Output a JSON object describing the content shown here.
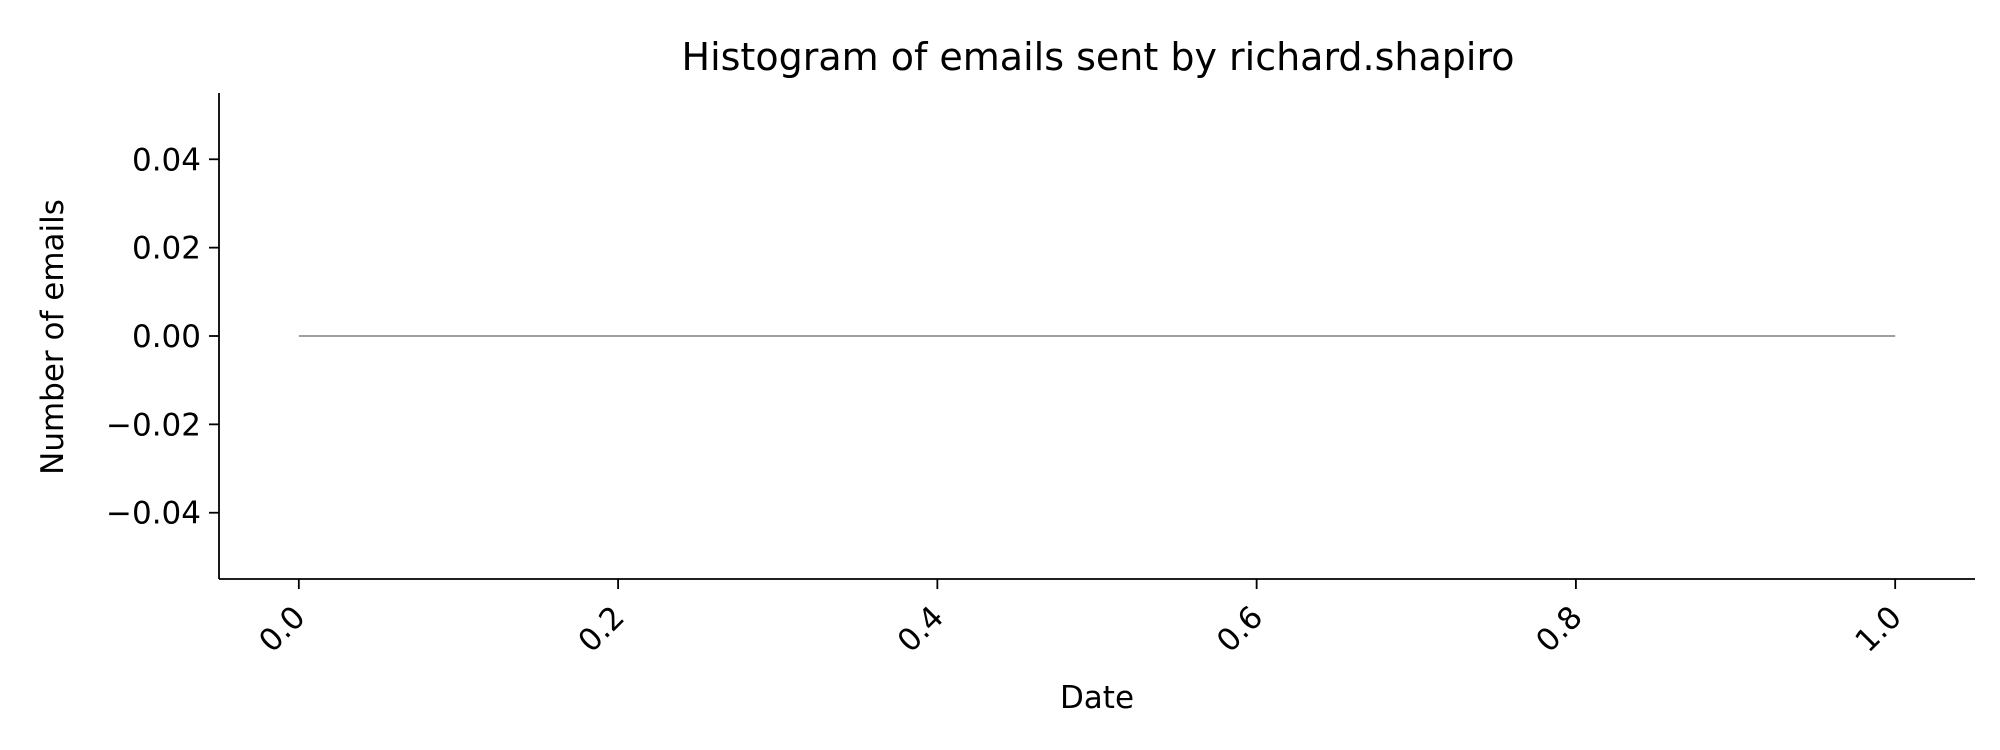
{
  "chart_data": {
    "type": "line",
    "title": "Histogram of emails sent by richard.shapiro",
    "xlabel": "Date",
    "ylabel": "Number of emails",
    "x_ticks": [
      "0.0",
      "0.2",
      "0.4",
      "0.6",
      "0.8",
      "1.0"
    ],
    "y_ticks": [
      "0.04",
      "0.02",
      "0.00",
      "−0.02",
      "−0.04"
    ],
    "xlim": [
      -0.05,
      1.05
    ],
    "ylim": [
      -0.055,
      0.055
    ],
    "grid": false,
    "series": [
      {
        "color": "#808080",
        "x": [
          0.0,
          1.0
        ],
        "y": [
          0.0,
          0.0
        ]
      }
    ]
  }
}
